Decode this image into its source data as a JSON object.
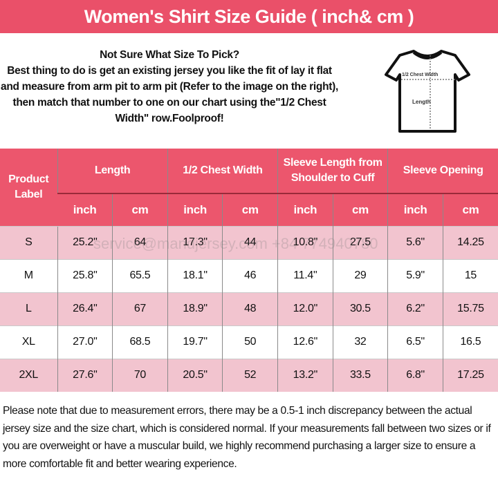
{
  "title": "Women's Shirt Size Guide ( inch& cm )",
  "intro": {
    "heading": "Not Sure What Size To Pick?",
    "body": "Best thing to do is get an existing jersey you like the fit of lay it flat and measure from arm pit to arm pit (Refer to the image on the right), then match that number to one on our chart using the\"1/2 Chest Width\" row.Foolproof!"
  },
  "diagram": {
    "chest_label": "1/2 Chest Width",
    "length_label": "Length"
  },
  "table": {
    "label_header": "Product Label",
    "groups": [
      "Length",
      "1/2 Chest Width",
      "Sleeve Length from Shoulder to Cuff",
      "Sleeve Opening"
    ],
    "units": [
      "inch",
      "cm",
      "inch",
      "cm",
      "inch",
      "cm",
      "inch",
      "cm"
    ],
    "rows": [
      [
        "S",
        "25.2\"",
        "64",
        "17.3\"",
        "44",
        "10.8\"",
        "27.5",
        "5.6\"",
        "14.25"
      ],
      [
        "M",
        "25.8\"",
        "65.5",
        "18.1\"",
        "46",
        "11.4\"",
        "29",
        "5.9\"",
        "15"
      ],
      [
        "L",
        "26.4\"",
        "67",
        "18.9\"",
        "48",
        "12.0\"",
        "30.5",
        "6.2\"",
        "15.75"
      ],
      [
        "XL",
        "27.0\"",
        "68.5",
        "19.7\"",
        "50",
        "12.6\"",
        "32",
        "6.5\"",
        "16.5"
      ],
      [
        "2XL",
        "27.6\"",
        "70",
        "20.5\"",
        "52",
        "13.2\"",
        "33.5",
        "6.8\"",
        "17.25"
      ]
    ]
  },
  "watermark": "service@mandjersey.com  +84 774940780",
  "footer": "Please note that due to measurement errors, there may be a 0.5-1 inch discrepancy between the actual jersey size and the size chart, which is considered normal. If your measurements fall between two sizes or if you are overweight or have a muscular build, we highly recommend purchasing a larger size to ensure a more comfortable fit and better wearing experience.",
  "colors": {
    "header": "#ea5069",
    "row_pink": "#f2c4cf"
  }
}
